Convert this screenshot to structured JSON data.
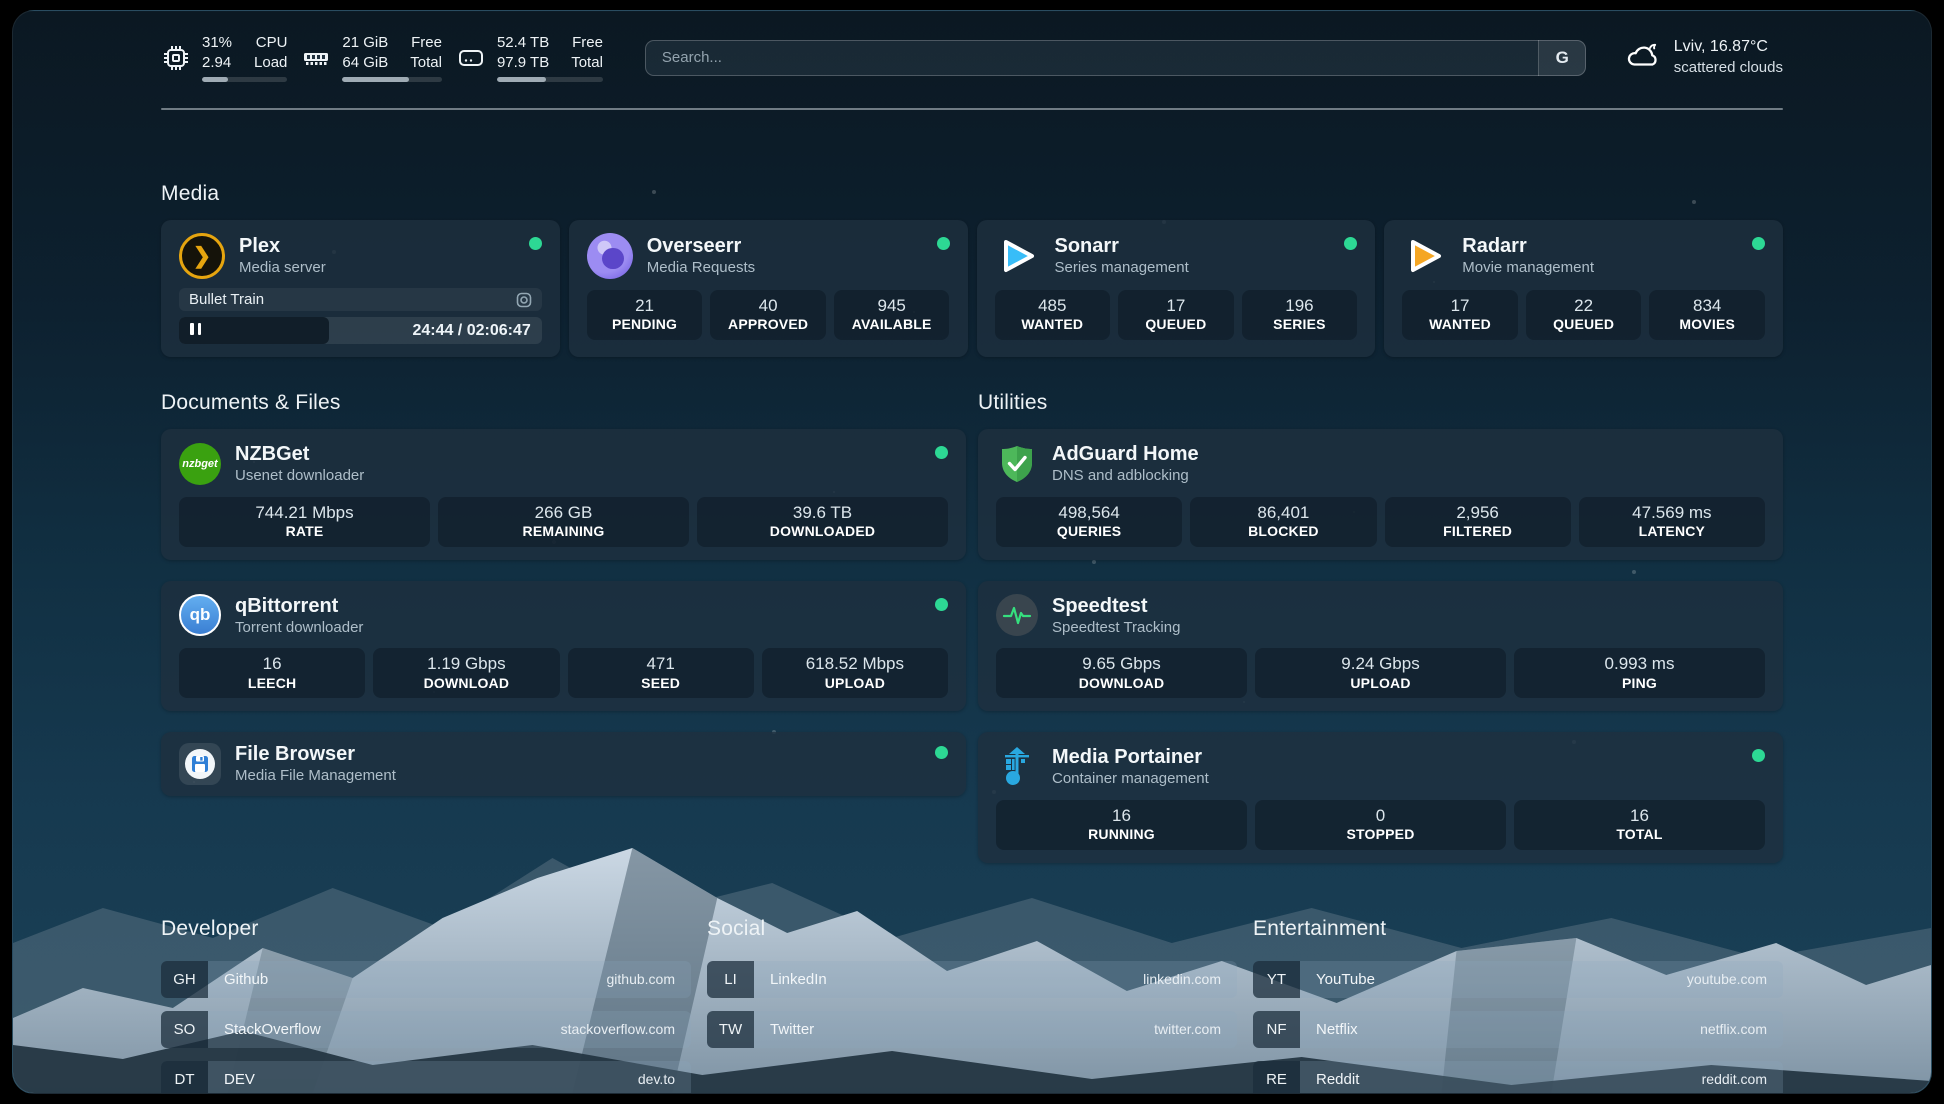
{
  "topbar": {
    "cpu": {
      "value_top": "31%",
      "value_bottom": "2.94",
      "label_top": "CPU",
      "label_bottom": "Load",
      "progress": 31
    },
    "memory": {
      "value_top": "21 GiB",
      "value_bottom": "64 GiB",
      "label_top": "Free",
      "label_bottom": "Total",
      "progress": 67
    },
    "disk": {
      "value_top": "52.4 TB",
      "value_bottom": "97.9 TB",
      "label_top": "Free",
      "label_bottom": "Total",
      "progress": 46
    },
    "search": {
      "placeholder": "Search...",
      "button": "G"
    },
    "weather": {
      "line1": "Lviv, 16.87°C",
      "line2": "scattered clouds"
    }
  },
  "sections": {
    "media": "Media",
    "documents": "Documents & Files",
    "utilities": "Utilities"
  },
  "colors": {
    "status_online": "#2dd894"
  },
  "services": {
    "plex": {
      "name": "Plex",
      "desc": "Media server",
      "now_playing": "Bullet Train",
      "time": "24:44 / 02:06:47"
    },
    "overseerr": {
      "name": "Overseerr",
      "desc": "Media Requests",
      "stats": [
        {
          "v": "21",
          "l": "PENDING"
        },
        {
          "v": "40",
          "l": "APPROVED"
        },
        {
          "v": "945",
          "l": "AVAILABLE"
        }
      ]
    },
    "sonarr": {
      "name": "Sonarr",
      "desc": "Series management",
      "stats": [
        {
          "v": "485",
          "l": "WANTED"
        },
        {
          "v": "17",
          "l": "QUEUED"
        },
        {
          "v": "196",
          "l": "SERIES"
        }
      ]
    },
    "radarr": {
      "name": "Radarr",
      "desc": "Movie management",
      "stats": [
        {
          "v": "17",
          "l": "WANTED"
        },
        {
          "v": "22",
          "l": "QUEUED"
        },
        {
          "v": "834",
          "l": "MOVIES"
        }
      ]
    },
    "nzbget": {
      "name": "NZBGet",
      "desc": "Usenet downloader",
      "icon_text": "nzbget",
      "stats": [
        {
          "v": "744.21 Mbps",
          "l": "RATE"
        },
        {
          "v": "266 GB",
          "l": "REMAINING"
        },
        {
          "v": "39.6 TB",
          "l": "DOWNLOADED"
        }
      ]
    },
    "qbittorrent": {
      "name": "qBittorrent",
      "desc": "Torrent downloader",
      "icon_text": "qb",
      "stats": [
        {
          "v": "16",
          "l": "LEECH"
        },
        {
          "v": "1.19 Gbps",
          "l": "DOWNLOAD"
        },
        {
          "v": "471",
          "l": "SEED"
        },
        {
          "v": "618.52 Mbps",
          "l": "UPLOAD"
        }
      ]
    },
    "filebrowser": {
      "name": "File Browser",
      "desc": "Media File Management"
    },
    "adguard": {
      "name": "AdGuard Home",
      "desc": "DNS and adblocking",
      "stats": [
        {
          "v": "498,564",
          "l": "QUERIES"
        },
        {
          "v": "86,401",
          "l": "BLOCKED"
        },
        {
          "v": "2,956",
          "l": "FILTERED"
        },
        {
          "v": "47.569 ms",
          "l": "LATENCY"
        }
      ]
    },
    "speedtest": {
      "name": "Speedtest",
      "desc": "Speedtest Tracking",
      "stats": [
        {
          "v": "9.65 Gbps",
          "l": "DOWNLOAD"
        },
        {
          "v": "9.24 Gbps",
          "l": "UPLOAD"
        },
        {
          "v": "0.993 ms",
          "l": "PING"
        }
      ]
    },
    "portainer": {
      "name": "Media Portainer",
      "desc": "Container management",
      "stats": [
        {
          "v": "16",
          "l": "RUNNING"
        },
        {
          "v": "0",
          "l": "STOPPED"
        },
        {
          "v": "16",
          "l": "TOTAL"
        }
      ]
    }
  },
  "bookmarks": {
    "developer": {
      "title": "Developer",
      "items": [
        {
          "abbr": "GH",
          "name": "Github",
          "url": "github.com"
        },
        {
          "abbr": "SO",
          "name": "StackOverflow",
          "url": "stackoverflow.com"
        },
        {
          "abbr": "DT",
          "name": "DEV",
          "url": "dev.to"
        }
      ]
    },
    "social": {
      "title": "Social",
      "items": [
        {
          "abbr": "LI",
          "name": "LinkedIn",
          "url": "linkedin.com"
        },
        {
          "abbr": "TW",
          "name": "Twitter",
          "url": "twitter.com"
        }
      ]
    },
    "entertainment": {
      "title": "Entertainment",
      "items": [
        {
          "abbr": "YT",
          "name": "YouTube",
          "url": "youtube.com"
        },
        {
          "abbr": "NF",
          "name": "Netflix",
          "url": "netflix.com"
        },
        {
          "abbr": "RE",
          "name": "Reddit",
          "url": "reddit.com"
        }
      ]
    }
  }
}
